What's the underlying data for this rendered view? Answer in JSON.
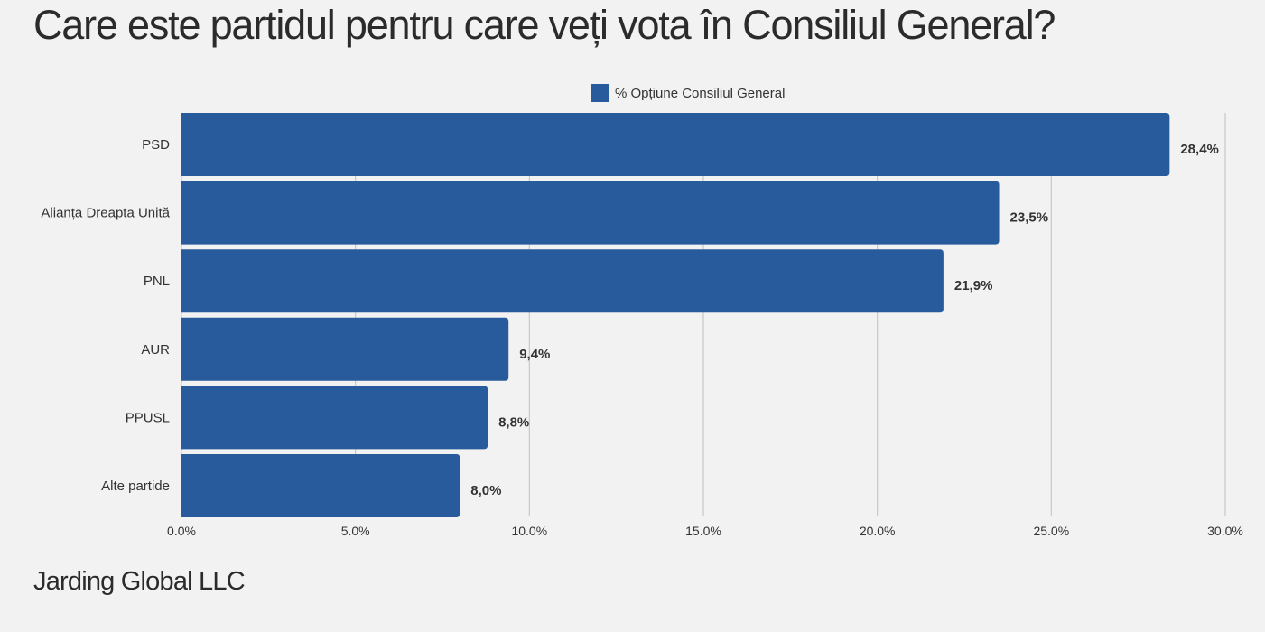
{
  "chart_data": {
    "type": "bar",
    "orientation": "horizontal",
    "title": "Care este partidul pentru care veți vota în Consiliul General?",
    "categories": [
      "PSD",
      "Alianța Dreapta Unită",
      "PNL",
      "AUR",
      "PPUSL",
      "Alte partide"
    ],
    "series": [
      {
        "name": "% Opțiune Consiliul General",
        "values": [
          28.4,
          23.5,
          21.9,
          9.4,
          8.8,
          8.0
        ],
        "data_labels": [
          "28,4%",
          "23,5%",
          "21,9%",
          "9,4%",
          "8,8%",
          "8,0%"
        ],
        "color": "#285b9b"
      }
    ],
    "xlim": [
      0,
      30
    ],
    "x_ticks": [
      0,
      5,
      10,
      15,
      20,
      25,
      30
    ],
    "x_tick_labels": [
      "0.0%",
      "5.0%",
      "10.0%",
      "15.0%",
      "20.0%",
      "25.0%",
      "30.0%"
    ],
    "xlabel": "",
    "ylabel": "",
    "grid": "vertical",
    "legend_position": "top-center"
  },
  "footer": "Jarding Global LLC",
  "colors": {
    "bar": "#285b9b",
    "grid": "#c8c8c8",
    "background": "#f2f2f2"
  }
}
